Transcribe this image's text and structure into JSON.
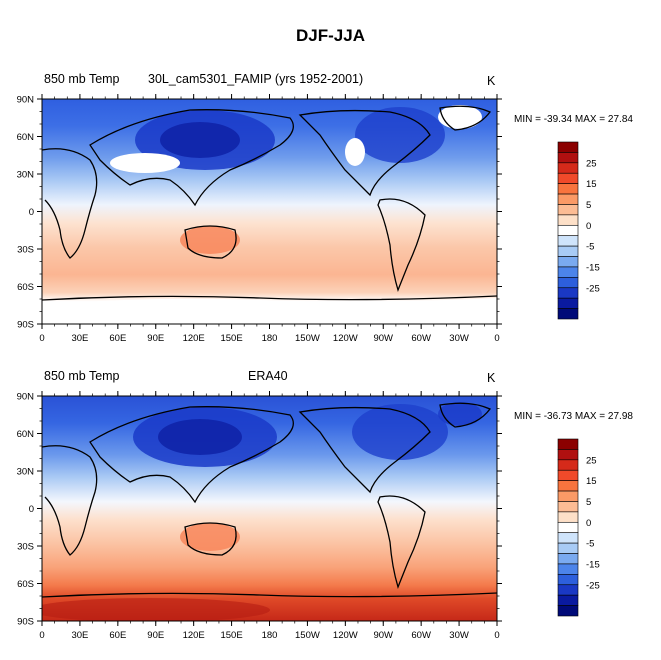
{
  "figure_title": "DJF-JJA",
  "panels": [
    {
      "variable": "850 mb Temp",
      "source": "30L_cam5301_FAMIP (yrs 1952-2001)",
      "units": "K",
      "stats": "MIN = -39.34 MAX =  27.84"
    },
    {
      "variable": "850 mb Temp",
      "source": "ERA40",
      "units": "K",
      "stats": "MIN = -36.73 MAX =  27.98"
    }
  ],
  "axes": {
    "lon_ticks": [
      "0",
      "30E",
      "60E",
      "90E",
      "120E",
      "150E",
      "180",
      "150W",
      "120W",
      "90W",
      "60W",
      "30W",
      "0"
    ],
    "lat_ticks": [
      "90N",
      "60N",
      "30N",
      "0",
      "30S",
      "60S",
      "90S"
    ]
  },
  "colorbar": {
    "labels": [
      "25",
      "15",
      "5",
      "0",
      "-5",
      "-15",
      "-25"
    ],
    "colors": [
      "#8b0000",
      "#b01010",
      "#d52a1a",
      "#f04a2a",
      "#f8743e",
      "#fb9a66",
      "#fcbc94",
      "#fde0c8",
      "#ffffff",
      "#cfe4fb",
      "#a8cbf5",
      "#7aaaf0",
      "#4c84ea",
      "#2d5fdc",
      "#1a38c4",
      "#0a1aa0",
      "#000a78"
    ]
  },
  "colors": {
    "ocean_warm": "#fcc3a3",
    "polar_cold": "#2a52d6"
  }
}
